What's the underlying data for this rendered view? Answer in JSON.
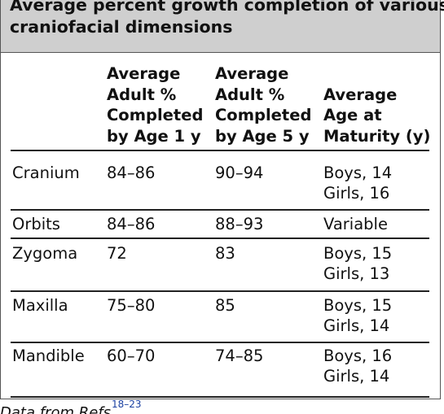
{
  "title": [
    "Average percent growth completion of various",
    "craniofacial dimensions"
  ],
  "table": {
    "header": [
      [],
      [
        "Average",
        "Adult %",
        "Completed",
        "by Age 1 y"
      ],
      [
        "Average",
        "Adult %",
        "Completed",
        "by Age 5 y"
      ],
      [
        "Average",
        "Age at",
        "Maturity (y)"
      ]
    ],
    "rows": [
      [
        [
          "Cranium"
        ],
        [
          "84–86"
        ],
        [
          "90–94"
        ],
        [
          "Boys, 14",
          "Girls, 16"
        ]
      ],
      [
        [
          "Orbits"
        ],
        [
          "84–86"
        ],
        [
          "88–93"
        ],
        [
          "Variable"
        ]
      ],
      [
        [
          "Zygoma"
        ],
        [
          "72"
        ],
        [
          "83"
        ],
        [
          "Boys, 15",
          "Girls, 13"
        ]
      ],
      [
        [
          "Maxilla"
        ],
        [
          "75–80"
        ],
        [
          "85"
        ],
        [
          "Boys, 15",
          "Girls, 14"
        ]
      ],
      [
        [
          "Mandible"
        ],
        [
          "60–70"
        ],
        [
          "74–85"
        ],
        [
          "Boys, 16",
          "Girls, 14"
        ]
      ]
    ]
  },
  "footer": {
    "text": "Data from Refs",
    "refs": "18–23"
  }
}
